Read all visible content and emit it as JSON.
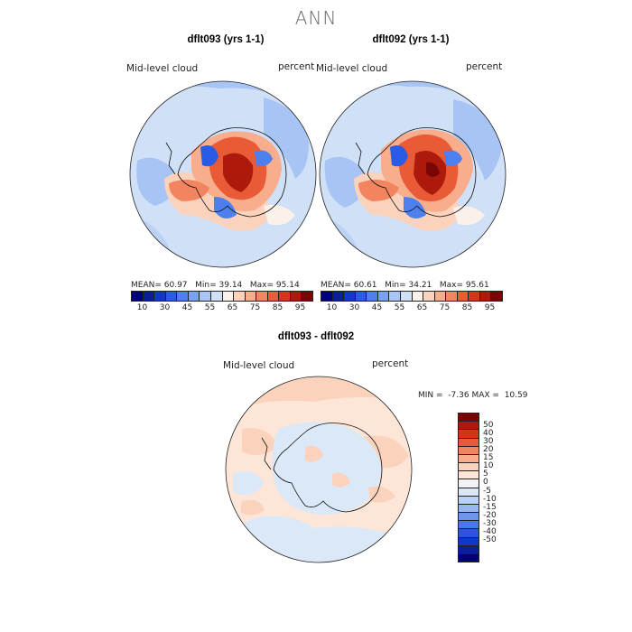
{
  "title": "ANN",
  "panels": [
    {
      "title": "dflt093 (yrs 1-1)",
      "variable": "Mid-level cloud",
      "units": "percent",
      "stats": {
        "mean_label": "MEAN=",
        "mean": "60.97",
        "min_label": "Min=",
        "min": "39.14",
        "max_label": "Max=",
        "max": "95.14"
      }
    },
    {
      "title": "dflt092 (yrs 1-1)",
      "variable": "Mid-level cloud",
      "units": "percent",
      "stats": {
        "mean_label": "MEAN=",
        "mean": "60.61",
        "min_label": "Min=",
        "min": "34.21",
        "max_label": "Max=",
        "max": "95.61"
      }
    }
  ],
  "diff_panel": {
    "title": "dflt093 - dflt092",
    "variable": "Mid-level cloud",
    "units": "percent",
    "stats": {
      "min_label": "MIN =",
      "min": "-7.36",
      "max_label": "MAX =",
      "max": "10.59"
    }
  },
  "colorbar_abs": {
    "colors": [
      "#00007a",
      "#0a1f9c",
      "#1236c7",
      "#2a5be6",
      "#4d7fee",
      "#7aa2f2",
      "#a7c4f5",
      "#cfe0f7",
      "#f9f1ea",
      "#fbd3bd",
      "#f8ad8c",
      "#f2855f",
      "#e95b36",
      "#d3341a",
      "#ad1a0c",
      "#7a0505"
    ],
    "tick_labels": [
      "10",
      "30",
      "45",
      "55",
      "65",
      "75",
      "85",
      "95"
    ]
  },
  "colorbar_diff": {
    "colors": [
      "#7a0505",
      "#ad1a0c",
      "#d3341a",
      "#e95b36",
      "#f2855f",
      "#f8ad8c",
      "#fbd3bd",
      "#fde6d8",
      "#f3f3f3",
      "#dbe8f7",
      "#bcd2f5",
      "#97b7f1",
      "#6f96ec",
      "#4a77e7",
      "#2a56db",
      "#1236c7",
      "#0a1f9c",
      "#00007a"
    ],
    "tick_labels": [
      "50",
      "40",
      "30",
      "20",
      "15",
      "10",
      "5",
      "0",
      "-5",
      "-10",
      "-15",
      "-20",
      "-30",
      "-40",
      "-50"
    ]
  }
}
